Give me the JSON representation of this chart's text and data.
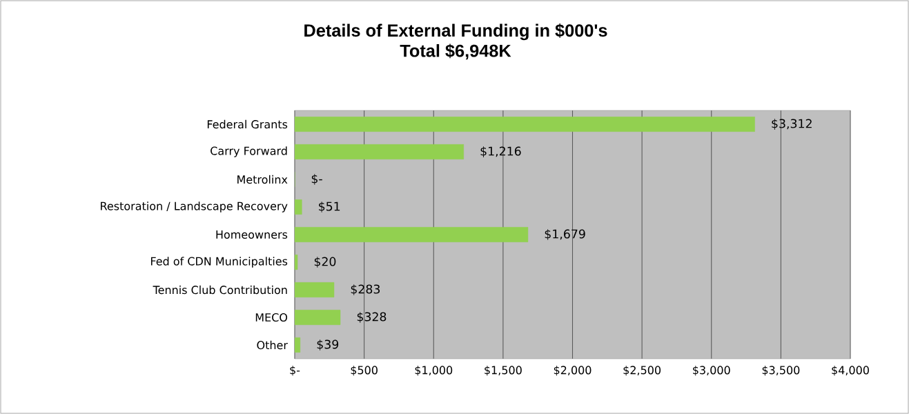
{
  "chart_data": {
    "type": "bar",
    "orientation": "horizontal",
    "title": "Details of External Funding in $000's",
    "subtitle": "Total $6,948K",
    "categories": [
      "Federal Grants",
      "Carry Forward",
      "Metrolinx",
      "Restoration / Landscape Recovery",
      "Homeowners",
      "Fed of CDN Municipalties",
      "Tennis Club Contribution",
      "MECO",
      "Other"
    ],
    "values": [
      3312,
      1216,
      0,
      51,
      1679,
      20,
      283,
      328,
      39
    ],
    "value_labels": [
      "$3,312",
      "$1,216",
      "$-",
      "$51",
      "$1,679",
      "$20",
      "$283",
      "$328",
      "$39"
    ],
    "color": "#92d050",
    "xlim": [
      0,
      4000
    ],
    "xticks": [
      {
        "value": 0,
        "label": "$-"
      },
      {
        "value": 500,
        "label": "$500"
      },
      {
        "value": 1000,
        "label": "$1,000"
      },
      {
        "value": 1500,
        "label": "$1,500"
      },
      {
        "value": 2000,
        "label": "$2,000"
      },
      {
        "value": 2500,
        "label": "$2,500"
      },
      {
        "value": 3000,
        "label": "$3,000"
      },
      {
        "value": 3500,
        "label": "$3,500"
      },
      {
        "value": 4000,
        "label": "$4,000"
      }
    ],
    "grid": "x"
  }
}
